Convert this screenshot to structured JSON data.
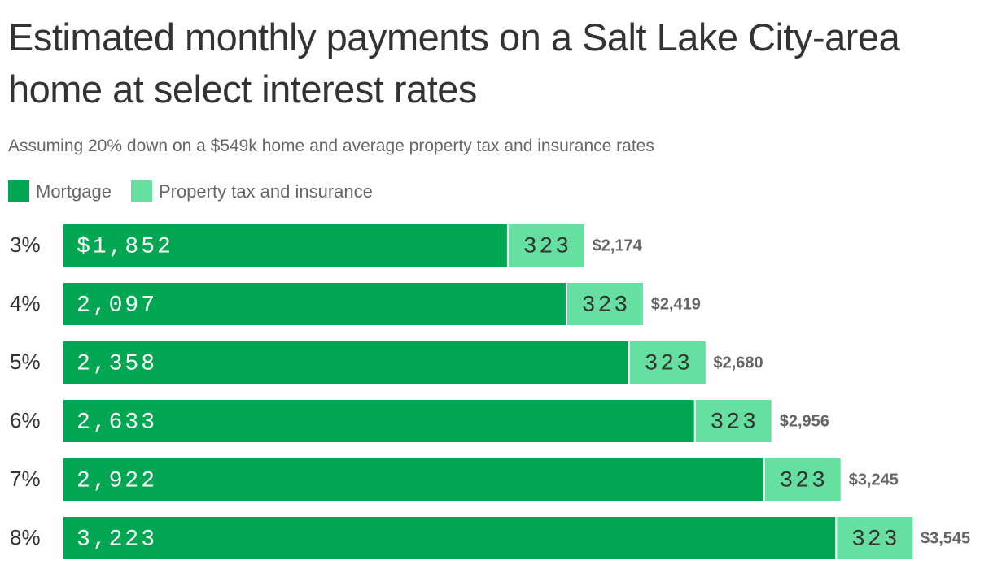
{
  "chart_data": {
    "type": "stacked-bar",
    "title": "Estimated monthly payments on a Salt Lake City-area home at select interest rates",
    "subtitle": "Assuming 20% down on a $549k home and average property tax and insurance rates",
    "categories": [
      "3%",
      "4%",
      "5%",
      "6%",
      "7%",
      "8%"
    ],
    "series": [
      {
        "name": "Mortgage",
        "color": "#00a651",
        "values": [
          1852,
          2097,
          2358,
          2633,
          2922,
          3223
        ],
        "value_labels": [
          "$1,852",
          "2,097",
          "2,358",
          "2,633",
          "2,922",
          "3,223"
        ]
      },
      {
        "name": "Property tax and insurance",
        "color": "#66e0a0",
        "values": [
          323,
          323,
          323,
          323,
          323,
          323
        ]
      }
    ],
    "totals": {
      "values": [
        2174,
        2419,
        2680,
        2956,
        3245,
        3545
      ],
      "value_labels": [
        "$2,174",
        "$2,419",
        "$2,680",
        "$2,956",
        "$3,245",
        "$3,545"
      ]
    }
  }
}
